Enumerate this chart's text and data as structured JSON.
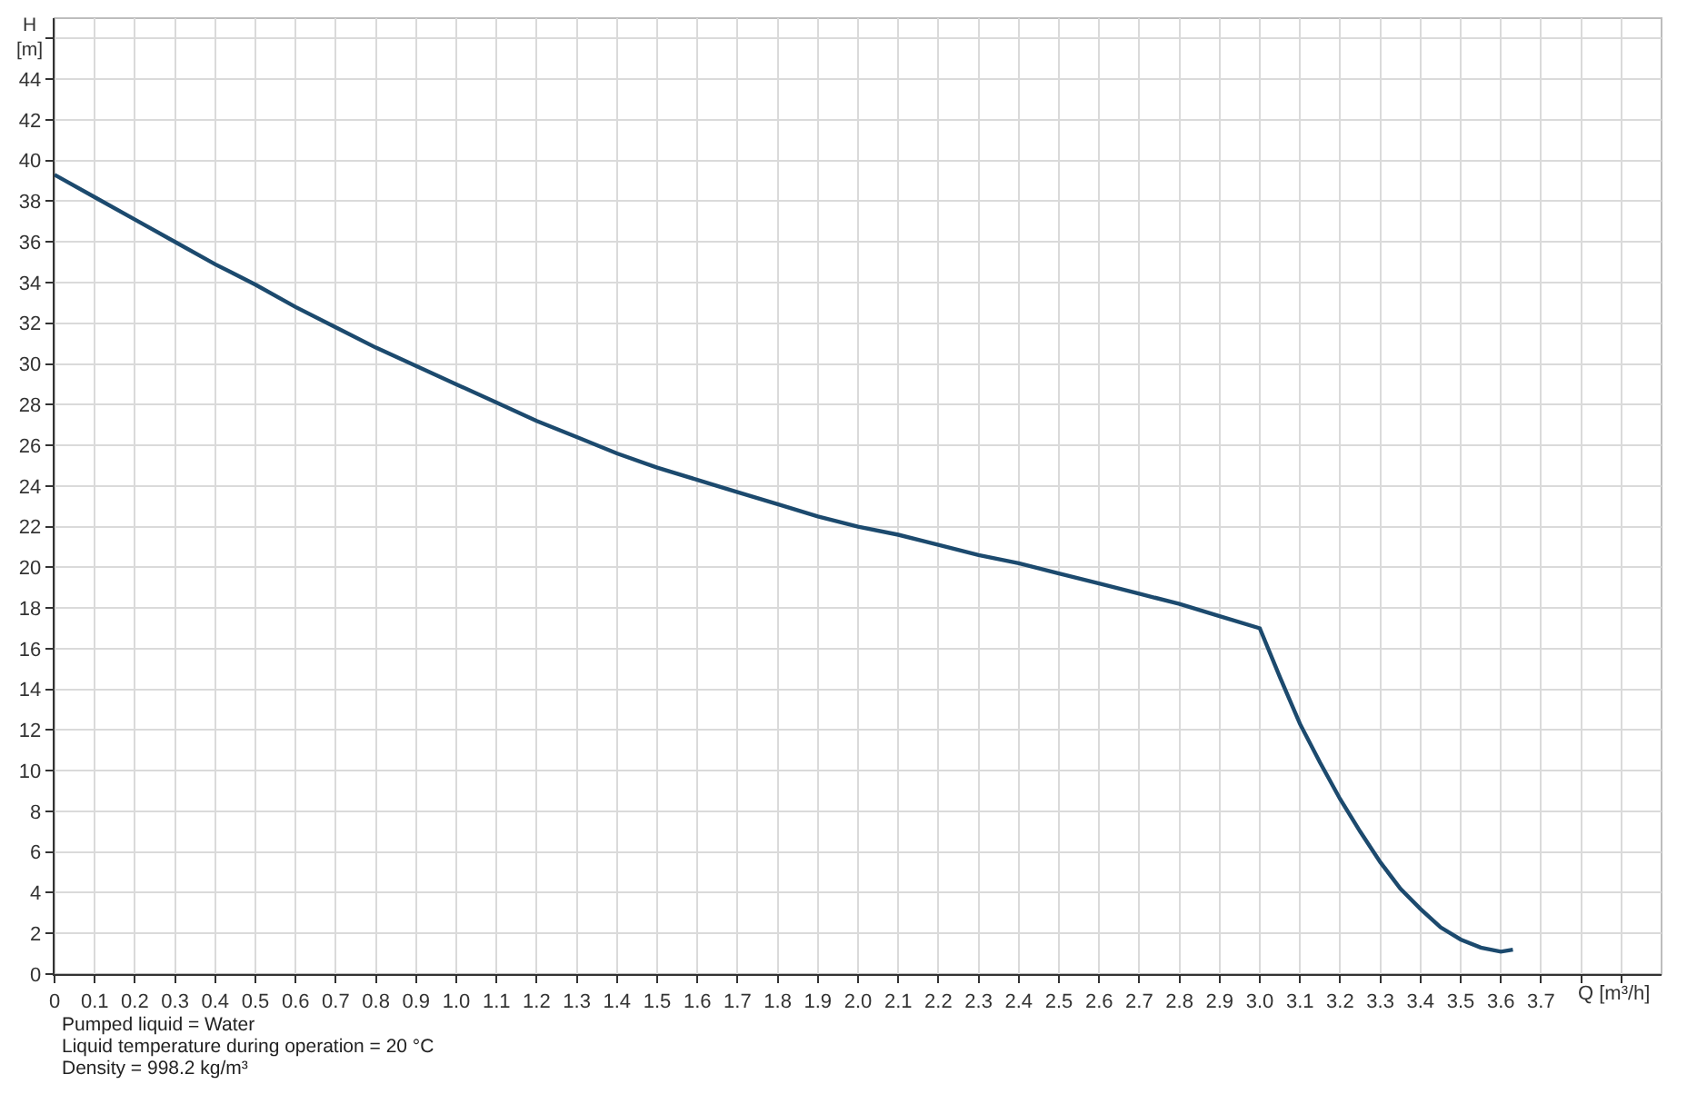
{
  "chart_data": {
    "type": "line",
    "xlabel": "Q [m³/h]",
    "ylabel": "H\n[m]",
    "x": [
      0,
      0.1,
      0.2,
      0.3,
      0.4,
      0.5,
      0.6,
      0.7,
      0.8,
      0.9,
      1.0,
      1.1,
      1.2,
      1.3,
      1.4,
      1.5,
      1.6,
      1.7,
      1.8,
      1.9,
      2.0,
      2.1,
      2.2,
      2.3,
      2.4,
      2.5,
      2.6,
      2.7,
      2.8,
      2.9,
      3.0,
      3.05,
      3.1,
      3.15,
      3.2,
      3.25,
      3.3,
      3.35,
      3.4,
      3.45,
      3.5,
      3.55,
      3.6,
      3.63
    ],
    "values": [
      39.3,
      38.2,
      37.1,
      36.0,
      34.9,
      33.9,
      32.8,
      31.8,
      30.8,
      29.9,
      29.0,
      28.1,
      27.2,
      26.4,
      25.6,
      24.9,
      24.3,
      23.7,
      23.1,
      22.5,
      22.0,
      21.6,
      21.1,
      20.6,
      20.2,
      19.7,
      19.2,
      18.7,
      18.2,
      17.6,
      17.0,
      14.6,
      12.3,
      10.4,
      8.6,
      7.0,
      5.5,
      4.2,
      3.2,
      2.3,
      1.7,
      1.3,
      1.1,
      1.2
    ],
    "color": "#1c4a6e",
    "line_style": "solid",
    "xlim": [
      0,
      4.0
    ],
    "ylim": [
      0,
      47
    ],
    "xticks": [
      0,
      0.1,
      0.2,
      0.3,
      0.4,
      0.5,
      0.6,
      0.7,
      0.8,
      0.9,
      {
        "value": 1,
        "label": "1.0"
      },
      1.1,
      1.2,
      1.3,
      1.4,
      1.5,
      1.6,
      1.7,
      1.8,
      1.9,
      {
        "value": 2,
        "label": "2.0"
      },
      2.1,
      2.2,
      2.3,
      2.4,
      2.5,
      2.6,
      2.7,
      2.8,
      2.9,
      {
        "value": 3,
        "label": "3.0"
      },
      3.1,
      3.2,
      3.3,
      3.4,
      3.5,
      3.6,
      3.7,
      {
        "value": 3.8,
        "label": null
      },
      {
        "value": 3.9,
        "label": null
      }
    ],
    "yticks": [
      0,
      2,
      4,
      6,
      8,
      10,
      12,
      14,
      16,
      18,
      20,
      22,
      24,
      26,
      28,
      30,
      32,
      34,
      36,
      38,
      40,
      42,
      44,
      {
        "value": 46,
        "label": null
      }
    ],
    "grid": true,
    "annotations": [
      "Pumped liquid = Water",
      "Liquid temperature during operation = 20 °C",
      "Density = 998.2 kg/m³"
    ]
  }
}
